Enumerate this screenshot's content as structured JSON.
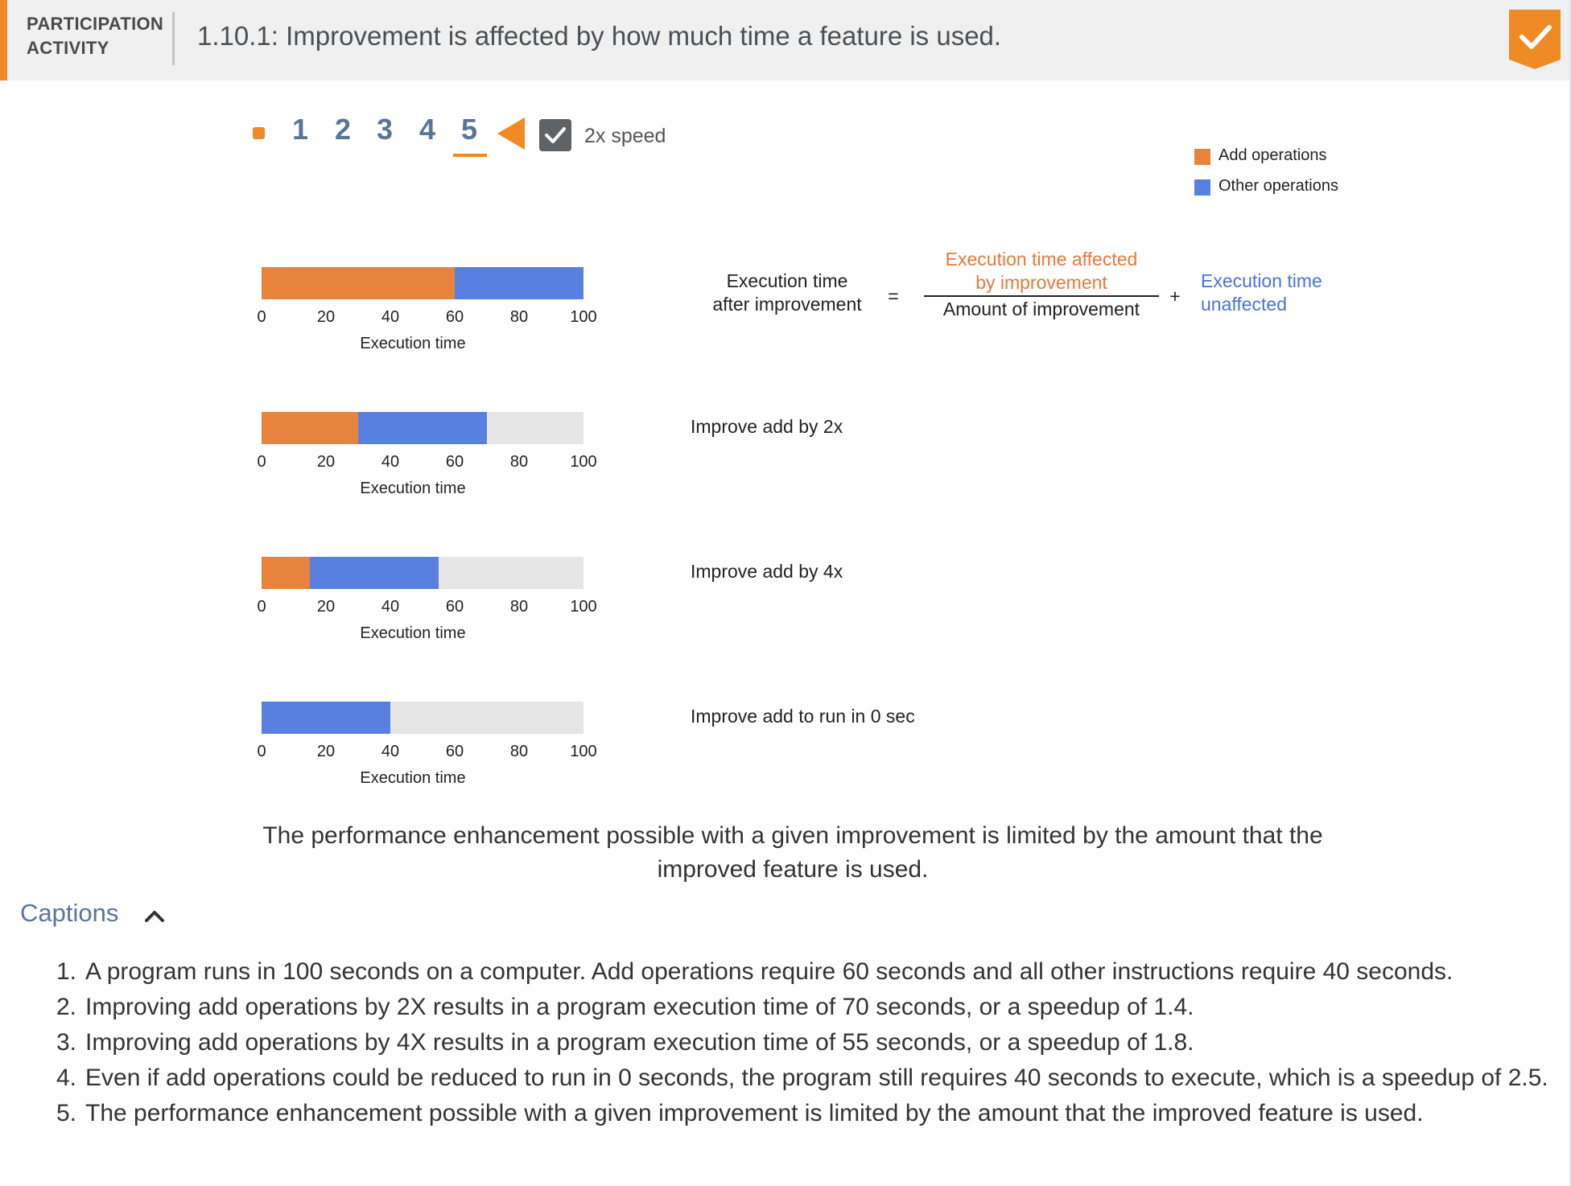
{
  "header": {
    "label_line1": "PARTICIPATION",
    "label_line2": "ACTIVITY",
    "title": "1.10.1: Improvement is affected by how much time a feature is used."
  },
  "controls": {
    "steps": [
      "1",
      "2",
      "3",
      "4",
      "5"
    ],
    "current_step": 5,
    "speed_label": "2x speed",
    "speed_checked": true
  },
  "legend": [
    {
      "label": "Add operations",
      "color": "#e8833e"
    },
    {
      "label": "Other operations",
      "color": "#5780e0"
    }
  ],
  "colors": {
    "accent": "#f08a24",
    "add": "#e8833e",
    "other": "#5780e0",
    "track": "#e6e6e6",
    "step_text": "#5b7597"
  },
  "chart_data": [
    {
      "type": "bar",
      "orientation": "horizontal",
      "stacked": true,
      "xlabel": "Execution time",
      "xlim": [
        0,
        100
      ],
      "ticks": [
        0,
        20,
        40,
        60,
        80,
        100
      ],
      "series": [
        {
          "name": "Add operations",
          "values": [
            60
          ]
        },
        {
          "name": "Other operations",
          "values": [
            40
          ]
        }
      ]
    },
    {
      "type": "bar",
      "orientation": "horizontal",
      "stacked": true,
      "xlabel": "Execution time",
      "xlim": [
        0,
        100
      ],
      "ticks": [
        0,
        20,
        40,
        60,
        80,
        100
      ],
      "series": [
        {
          "name": "Add operations",
          "values": [
            30
          ]
        },
        {
          "name": "Other operations",
          "values": [
            40
          ]
        }
      ]
    },
    {
      "type": "bar",
      "orientation": "horizontal",
      "stacked": true,
      "xlabel": "Execution time",
      "xlim": [
        0,
        100
      ],
      "ticks": [
        0,
        20,
        40,
        60,
        80,
        100
      ],
      "series": [
        {
          "name": "Add operations",
          "values": [
            15
          ]
        },
        {
          "name": "Other operations",
          "values": [
            40
          ]
        }
      ]
    },
    {
      "type": "bar",
      "orientation": "horizontal",
      "stacked": true,
      "xlabel": "Execution time",
      "xlim": [
        0,
        100
      ],
      "ticks": [
        0,
        20,
        40,
        60,
        80,
        100
      ],
      "series": [
        {
          "name": "Add operations",
          "values": [
            0
          ]
        },
        {
          "name": "Other operations",
          "values": [
            40
          ]
        }
      ]
    }
  ],
  "equation": {
    "lhs_line1": "Execution time",
    "lhs_line2": "after improvement",
    "equals": "=",
    "numerator_line1": "Execution time affected",
    "numerator_line2": "by improvement",
    "denominator": "Amount of improvement",
    "plus": "+",
    "rhs_line1": "Execution time",
    "rhs_line2": "unaffected"
  },
  "improvements": [
    "Improve add by 2x",
    "Improve add by 4x",
    "Improve add to run in 0 sec"
  ],
  "summary": "The performance enhancement possible with a given improvement is limited by the amount that the improved feature is used.",
  "captions": {
    "toggle_label": "Captions",
    "items": [
      {
        "num": "1.",
        "text": "A program runs in 100 seconds on a computer. Add operations require 60 seconds and all other instructions require 40 seconds."
      },
      {
        "num": "2.",
        "text": "Improving add operations by 2X results in a program execution time of 70 seconds, or a speedup of 1.4."
      },
      {
        "num": "3.",
        "text": "Improving add operations by 4X results in a program execution time of 55 seconds, or a speedup of 1.8."
      },
      {
        "num": "4.",
        "text": "Even if add operations could be reduced to run in 0 seconds, the program still requires 40 seconds to execute, which is a speedup of 2.5."
      },
      {
        "num": "5.",
        "text": "The performance enhancement possible with a given improvement is limited by the amount that the improved feature is used."
      }
    ]
  }
}
